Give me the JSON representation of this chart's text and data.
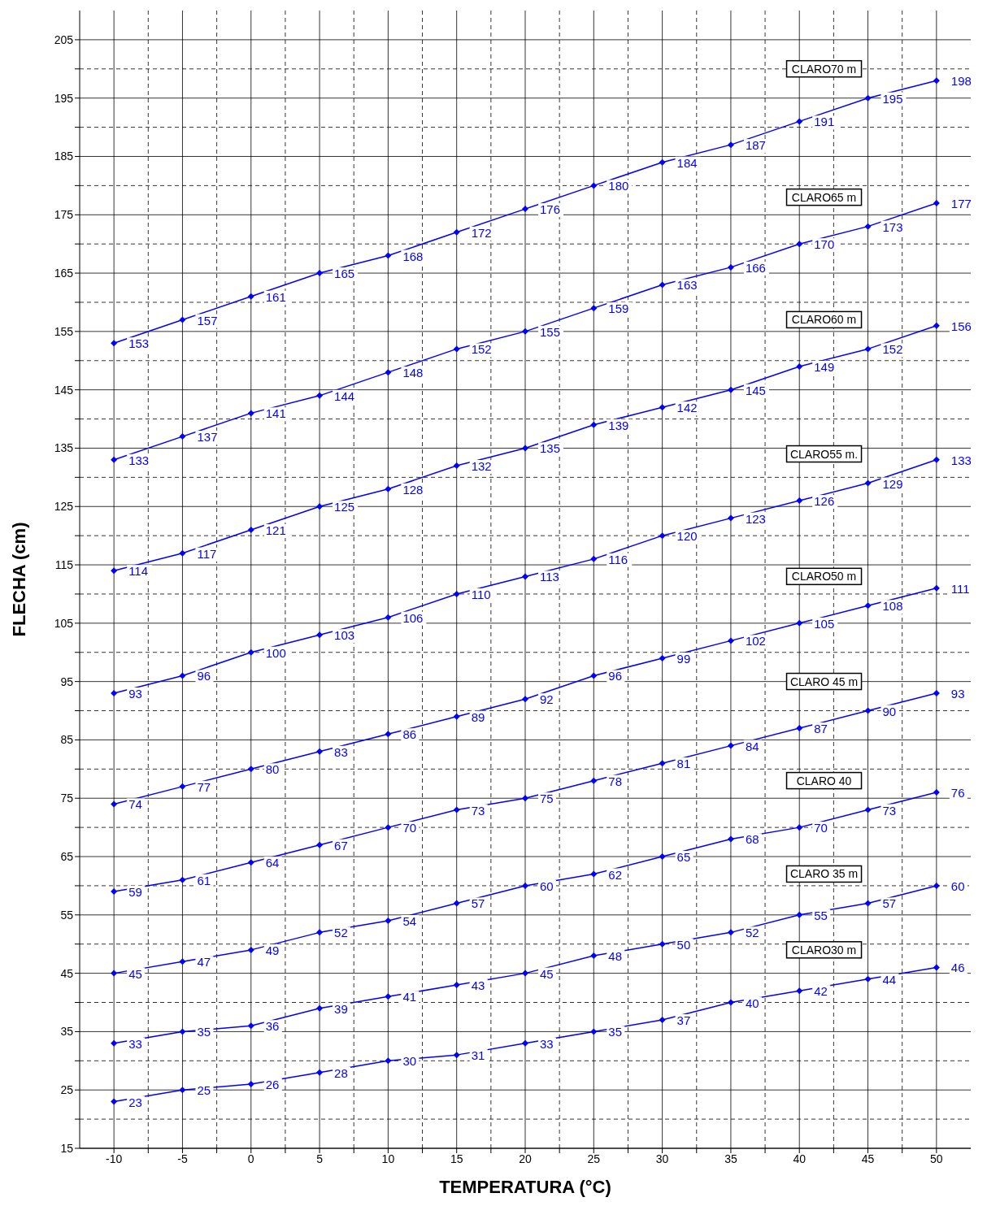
{
  "chart_data": {
    "type": "line",
    "xlabel": "TEMPERATURA (°C)",
    "ylabel": "FLECHA (cm)",
    "x": [
      -10,
      -5,
      0,
      5,
      10,
      15,
      20,
      25,
      30,
      35,
      40,
      45,
      50
    ],
    "xlim": [
      -12.5,
      52.5
    ],
    "xticks": [
      -10,
      {
        "value": -7.5,
        "label": null
      },
      -5,
      {
        "value": -2.5,
        "label": null
      },
      0,
      {
        "value": 2.5,
        "label": null
      },
      5,
      {
        "value": 7.5,
        "label": null
      },
      10,
      {
        "value": 12.5,
        "label": null
      },
      15,
      {
        "value": 17.5,
        "label": null
      },
      20,
      {
        "value": 22.5,
        "label": null
      },
      25,
      {
        "value": 27.5,
        "label": null
      },
      30,
      {
        "value": 32.5,
        "label": null
      },
      35,
      {
        "value": 37.5,
        "label": null
      },
      40,
      {
        "value": 42.5,
        "label": null
      },
      45,
      {
        "value": 47.5,
        "label": null
      },
      50
    ],
    "ylim": [
      15,
      210
    ],
    "yticks": [
      15,
      {
        "value": 20,
        "label": null
      },
      25,
      {
        "value": 30,
        "label": null
      },
      35,
      {
        "value": 40,
        "label": null
      },
      45,
      {
        "value": 50,
        "label": null
      },
      55,
      {
        "value": 60,
        "label": null
      },
      65,
      {
        "value": 70,
        "label": null
      },
      75,
      {
        "value": 80,
        "label": null
      },
      85,
      {
        "value": 90,
        "label": null
      },
      95,
      {
        "value": 100,
        "label": null
      },
      105,
      {
        "value": 110,
        "label": null
      },
      115,
      {
        "value": 120,
        "label": null
      },
      125,
      {
        "value": 130,
        "label": null
      },
      135,
      {
        "value": 140,
        "label": null
      },
      145,
      {
        "value": 150,
        "label": null
      },
      155,
      {
        "value": 160,
        "label": null
      },
      165,
      {
        "value": 170,
        "label": null
      },
      175,
      {
        "value": 180,
        "label": null
      },
      185,
      {
        "value": 190,
        "label": null
      },
      195,
      {
        "value": 200,
        "label": null
      },
      205
    ],
    "grid": true,
    "legend": false,
    "marker": "diamond",
    "line_style": "solid",
    "data_labels": true,
    "series": [
      {
        "name": "CLARO70 m",
        "color": "#0000ff",
        "values": [
          153,
          157,
          161,
          165,
          168,
          172,
          176,
          180,
          184,
          187,
          191,
          195,
          198
        ]
      },
      {
        "name": "CLARO65 m",
        "color": "#0000ff",
        "values": [
          133,
          137,
          141,
          144,
          148,
          152,
          155,
          159,
          163,
          166,
          170,
          173,
          177
        ]
      },
      {
        "name": "CLARO60 m",
        "color": "#0000ff",
        "values": [
          114,
          117,
          121,
          125,
          128,
          132,
          135,
          139,
          142,
          145,
          149,
          152,
          156
        ]
      },
      {
        "name": "CLARO55 m.",
        "color": "#0000ff",
        "values": [
          93,
          96,
          100,
          103,
          106,
          110,
          113,
          116,
          120,
          123,
          126,
          129,
          133
        ]
      },
      {
        "name": "CLARO50 m",
        "color": "#0000ff",
        "values": [
          74,
          77,
          80,
          83,
          86,
          89,
          92,
          96,
          99,
          102,
          105,
          108,
          111
        ]
      },
      {
        "name": "CLARO 45 m",
        "color": "#0000ff",
        "values": [
          59,
          61,
          64,
          67,
          70,
          73,
          75,
          78,
          81,
          84,
          87,
          90,
          93
        ]
      },
      {
        "name": "CLARO 40",
        "color": "#0000ff",
        "values": [
          45,
          47,
          49,
          52,
          54,
          57,
          60,
          62,
          65,
          68,
          70,
          73,
          76
        ]
      },
      {
        "name": "CLARO 35 m",
        "color": "#0000ff",
        "values": [
          33,
          35,
          36,
          39,
          41,
          43,
          45,
          48,
          50,
          52,
          55,
          57,
          60
        ]
      },
      {
        "name": "CLARO30 m",
        "color": "#0000ff",
        "values": [
          23,
          25,
          26,
          28,
          30,
          31,
          33,
          35,
          37,
          40,
          42,
          44,
          46
        ]
      }
    ]
  }
}
